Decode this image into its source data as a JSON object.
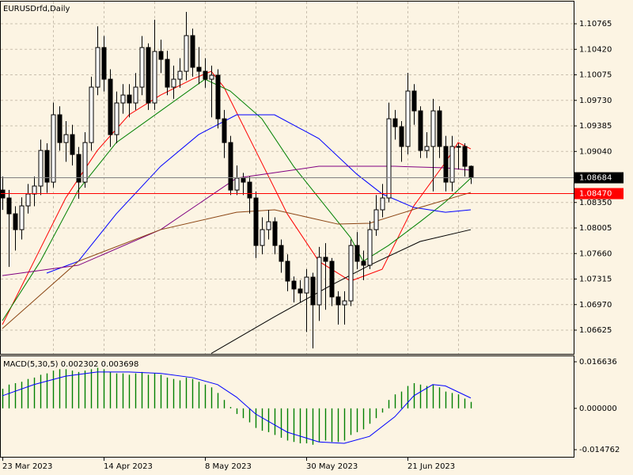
{
  "chart_data": [
    {
      "type": "candlestick",
      "title": "EURUSDrfd,Daily",
      "grid": true,
      "categories": [
        "23 Mar 2023",
        null,
        null,
        null,
        null,
        null,
        null,
        null,
        null,
        null,
        null,
        null,
        null,
        null,
        null,
        null,
        "14 Apr 2023",
        null,
        null,
        null,
        null,
        null,
        null,
        null,
        null,
        null,
        null,
        null,
        null,
        null,
        null,
        null,
        "8 May 2023",
        null,
        null,
        null,
        null,
        null,
        null,
        null,
        null,
        null,
        null,
        null,
        null,
        null,
        null,
        null,
        "30 May 2023",
        null,
        null,
        null,
        null,
        null,
        null,
        null,
        null,
        null,
        null,
        null,
        null,
        null,
        null,
        null,
        "21 Jun 2023",
        null,
        null,
        null,
        null,
        null,
        null,
        null,
        null,
        null,
        null
      ],
      "open": [
        1.08518,
        1.08411,
        1.08197,
        1.07983,
        1.08304,
        1.08465,
        1.08572,
        1.09053,
        1.08625,
        1.09535,
        1.0916,
        1.09267,
        1.08999,
        1.08625,
        1.0916,
        1.09909,
        1.10444,
        1.10016,
        1.09267,
        1.09695,
        1.09802,
        1.09695,
        1.09909,
        1.10444,
        1.09695,
        1.10391,
        1.10284,
        1.09909,
        1.10016,
        1.10123,
        1.10605,
        1.10177,
        1.10123,
        1.10016,
        1.1007,
        1.09481,
        1.0916,
        1.08518,
        1.08679,
        1.08625,
        1.08411,
        1.07769,
        1.07983,
        1.0809,
        1.07769,
        1.07555,
        1.07288,
        1.07181,
        1.07127,
        1.07341,
        1.06967,
        1.07609,
        1.07555,
        1.07074,
        1.06967,
        1.0702,
        1.07769,
        1.07555,
        1.07502,
        1.07983,
        1.08251,
        1.08411,
        1.09481,
        1.09374,
        1.09107,
        1.09856,
        1.09588,
        1.09053,
        1.09107,
        1.09588,
        1.09107,
        1.08625,
        1.09107,
        1.09107,
        1.08839
      ],
      "high": [
        1.087,
        1.0852,
        1.083,
        1.0842,
        1.086,
        1.087,
        1.092,
        1.0915,
        1.097,
        1.0965,
        1.0945,
        1.094,
        1.091,
        1.093,
        1.1005,
        1.1073,
        1.106,
        1.1015,
        1.0985,
        1.0995,
        1.0995,
        1.101,
        1.106,
        1.105,
        1.1082,
        1.1055,
        1.104,
        1.102,
        1.103,
        1.10926,
        1.107,
        1.1045,
        1.103,
        1.102,
        1.1015,
        1.096,
        1.0925,
        1.0885,
        1.0875,
        1.087,
        1.085,
        1.0815,
        1.0825,
        1.0815,
        1.0785,
        1.0765,
        1.0735,
        1.073,
        1.0745,
        1.074,
        1.0775,
        1.078,
        1.076,
        1.0715,
        1.0715,
        1.0785,
        1.0795,
        1.077,
        1.081,
        1.0845,
        1.086,
        1.097,
        1.096,
        1.0945,
        1.10102,
        1.0995,
        1.0965,
        1.093,
        1.0975,
        1.0965,
        1.0925,
        1.0925,
        1.0915,
        1.0915,
        1.0885
      ],
      "low": [
        1.0825,
        1.0748,
        1.077,
        1.0785,
        1.082,
        1.083,
        1.0845,
        1.0848,
        1.0855,
        1.0905,
        1.089,
        1.0885,
        1.084,
        1.0855,
        1.0905,
        1.098,
        1.0985,
        1.091,
        1.0915,
        1.0955,
        1.095,
        1.096,
        1.098,
        1.096,
        1.096,
        1.101,
        1.098,
        1.0975,
        1.099,
        1.1,
        1.1005,
        1.0995,
        1.099,
        1.095,
        1.0935,
        1.0895,
        1.0845,
        1.0845,
        1.0845,
        1.082,
        1.076,
        1.0765,
        1.0785,
        1.0765,
        1.074,
        1.0715,
        1.07,
        1.07,
        1.066,
        1.06378,
        1.0675,
        1.069,
        1.0695,
        1.067,
        1.067,
        1.0695,
        1.0745,
        1.073,
        1.0745,
        1.079,
        1.0815,
        1.0835,
        1.092,
        1.089,
        1.09,
        1.094,
        1.0895,
        1.0895,
        1.085,
        1.0895,
        1.085,
        1.085,
        1.088,
        1.087,
        1.086
      ],
      "close": [
        1.08411,
        1.08197,
        1.07983,
        1.08304,
        1.08465,
        1.08572,
        1.09053,
        1.08625,
        1.09535,
        1.0916,
        1.09267,
        1.08999,
        1.08625,
        1.0916,
        1.09909,
        1.10444,
        1.10016,
        1.09267,
        1.09695,
        1.09802,
        1.09695,
        1.09909,
        1.10444,
        1.09695,
        1.10391,
        1.10284,
        1.09909,
        1.10016,
        1.10123,
        1.10605,
        1.10177,
        1.10123,
        1.10016,
        1.1007,
        1.09481,
        1.0916,
        1.08518,
        1.08679,
        1.08625,
        1.08411,
        1.07769,
        1.07983,
        1.0809,
        1.07769,
        1.07555,
        1.07288,
        1.07181,
        1.07127,
        1.07341,
        1.06967,
        1.07609,
        1.07555,
        1.07074,
        1.06967,
        1.0702,
        1.07769,
        1.07555,
        1.07502,
        1.07983,
        1.08251,
        1.08411,
        1.09481,
        1.09374,
        1.09107,
        1.09856,
        1.09588,
        1.09053,
        1.09107,
        1.09588,
        1.09107,
        1.08625,
        1.09107,
        1.09107,
        1.08839,
        1.08684
      ],
      "lines": [
        {
          "color": "#ff0000",
          "x": [
            0,
            5,
            10,
            15,
            20,
            25,
            30,
            33,
            35,
            40,
            45,
            50,
            55,
            60,
            65,
            70,
            72,
            74
          ],
          "values": [
            1.06699,
            1.07555,
            1.08411,
            1.09053,
            1.09535,
            1.09802,
            1.10016,
            1.10123,
            1.09909,
            1.09053,
            1.08197,
            1.07555,
            1.07288,
            1.07448,
            1.08304,
            1.08893,
            1.0916,
            1.09074
          ]
        },
        {
          "color": "#008000",
          "x": [
            0,
            6,
            12,
            18,
            25,
            32,
            36,
            41,
            46,
            51,
            55,
            57,
            61,
            66,
            70,
            74
          ],
          "values": [
            1.06753,
            1.07555,
            1.08518,
            1.0916,
            1.09588,
            1.10016,
            1.09856,
            1.09481,
            1.08839,
            1.08304,
            1.07876,
            1.07555,
            1.07769,
            1.0809,
            1.08358,
            1.08679
          ]
        },
        {
          "color": "#0000ff",
          "x": [
            7,
            12,
            18,
            25,
            31,
            37,
            43,
            50,
            56,
            60,
            65,
            70,
            74
          ],
          "values": [
            1.07395,
            1.07555,
            1.08197,
            1.08839,
            1.09267,
            1.09535,
            1.09535,
            1.09214,
            1.08732,
            1.08465,
            1.08283,
            1.08218,
            1.08251
          ]
        },
        {
          "color": "#800080",
          "x": [
            0,
            12,
            25,
            37,
            50,
            62,
            70,
            74
          ],
          "values": [
            1.07362,
            1.07502,
            1.07983,
            1.08679,
            1.08839,
            1.08839,
            1.08818,
            1.08786
          ]
        },
        {
          "color": "#8b4513",
          "x": [
            0,
            12,
            25,
            37,
            43,
            53,
            58,
            66,
            74
          ],
          "values": [
            1.06646,
            1.07555,
            1.07983,
            1.08218,
            1.08251,
            1.08058,
            1.08069,
            1.08283,
            1.08486
          ]
        },
        {
          "color": "#000000",
          "x": [
            33,
            43,
            52,
            58,
            66,
            74
          ],
          "values": [
            1.0631,
            1.06806,
            1.07234,
            1.07502,
            1.07823,
            1.07983
          ]
        }
      ],
      "price_lines": [
        {
          "value": 1.08684,
          "color": "#808080",
          "box": "#000000"
        },
        {
          "value": 1.0847,
          "label": "1.08470",
          "color": "#ff0000",
          "box": "#ff0000"
        }
      ],
      "ylim": [
        1.06304,
        1.11065
      ],
      "yticks": [
        1.10765,
        {
          "value": 1.1042,
          "label": "1.10420"
        },
        1.10075,
        {
          "value": 1.0973,
          "label": "1.09730"
        },
        1.09385,
        {
          "value": 1.0904,
          "label": "1.09040"
        },
        {
          "value": 1.0835,
          "label": "1.08350"
        },
        1.08005,
        {
          "value": 1.0766,
          "label": "1.07660"
        },
        1.07315,
        {
          "value": 1.0697,
          "label": "1.06970"
        },
        1.06625
      ]
    },
    {
      "type": "macd",
      "title": "MACD(5,30,5) 0.002302 0.003698",
      "grid": false,
      "color": "#008000",
      "values": [
        0.007,
        0.0085,
        0.009,
        0.0095,
        0.0105,
        0.011,
        0.012,
        0.0125,
        0.0135,
        0.014,
        0.014,
        0.0135,
        0.013,
        0.0135,
        0.014,
        0.0145,
        0.014,
        0.013,
        0.0125,
        0.0125,
        0.012,
        0.0125,
        0.013,
        0.012,
        0.0125,
        0.012,
        0.011,
        0.0105,
        0.01,
        0.011,
        0.0105,
        0.0095,
        0.0085,
        0.0075,
        0.0055,
        0.003,
        0.0005,
        -0.002,
        -0.0035,
        -0.005,
        -0.007,
        -0.008,
        -0.0085,
        -0.0095,
        -0.0105,
        -0.0115,
        -0.012,
        -0.0125,
        -0.0125,
        -0.013,
        -0.012,
        -0.0115,
        -0.012,
        -0.012,
        -0.0115,
        -0.0095,
        -0.0085,
        -0.0075,
        -0.0055,
        -0.0035,
        -0.0015,
        0.003,
        0.005,
        0.006,
        0.008,
        0.009,
        0.0085,
        0.008,
        0.0085,
        0.0075,
        0.006,
        0.0055,
        0.005,
        0.0035,
        0.002302
      ],
      "signal": {
        "color": "#0000ff",
        "x": [
          0,
          5,
          10,
          15,
          20,
          25,
          30,
          34,
          37,
          40,
          45,
          50,
          54,
          58,
          62,
          65,
          68,
          70,
          74
        ],
        "values": [
          0.0045,
          0.0085,
          0.0115,
          0.013,
          0.013,
          0.0125,
          0.011,
          0.0085,
          0.004,
          -0.002,
          -0.0085,
          -0.012,
          -0.0125,
          -0.01,
          -0.003,
          0.0045,
          0.0085,
          0.008,
          0.003698
        ]
      },
      "ylim": [
        -0.01759,
        0.01862
      ],
      "yticks": [
        0.016636,
        {
          "value": 0,
          "label": "0.000000"
        },
        -0.014762
      ]
    }
  ]
}
